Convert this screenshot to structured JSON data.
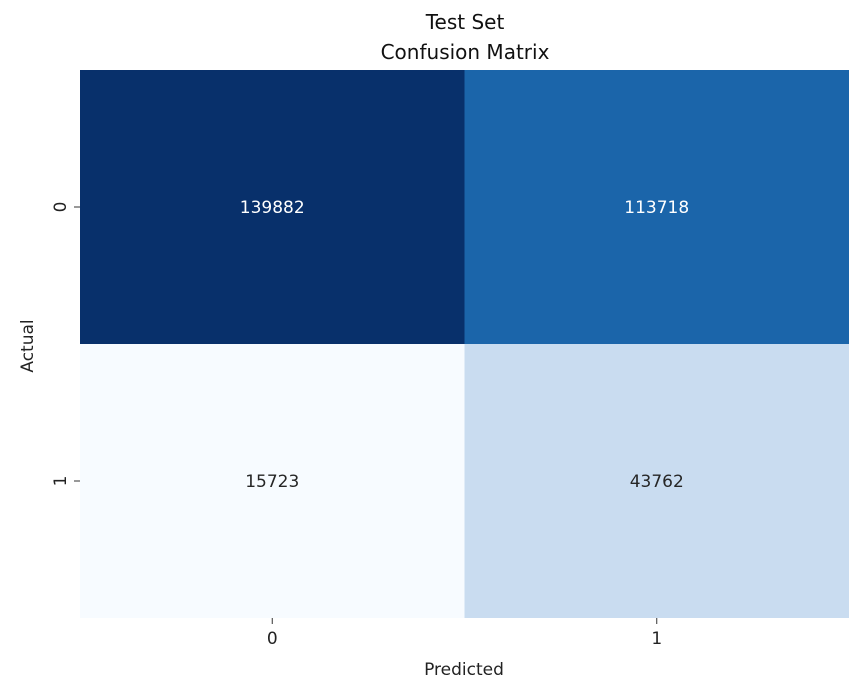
{
  "chart_data": {
    "type": "heatmap",
    "title": "Test Set",
    "subtitle": "Confusion Matrix",
    "xlabel": "Predicted",
    "ylabel": "Actual",
    "x_categories": [
      "0",
      "1"
    ],
    "y_categories": [
      "0",
      "1"
    ],
    "values": [
      [
        139882,
        113718
      ],
      [
        15723,
        43762
      ]
    ],
    "colormap": "Blues",
    "colors": {
      "cells": [
        [
          "#08306b",
          "#1b65aa"
        ],
        [
          "#f7fbff",
          "#c9dcf0"
        ]
      ],
      "text_dark_bg": "#ffffff",
      "text_light_bg": "#262626"
    },
    "colorbar": false,
    "grid": false
  }
}
